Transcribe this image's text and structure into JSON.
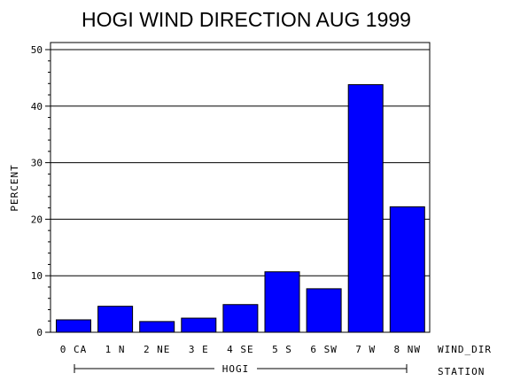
{
  "chart_data": {
    "type": "bar",
    "title": "HOGI WIND DIRECTION AUG 1999",
    "ylabel": "PERCENT",
    "xlabel": "WIND_DIR",
    "group_axis_label": "STATION",
    "group_label": "HOGI",
    "categories": [
      "0 CA",
      "1 N",
      "2 NE",
      "3 E",
      "4 SE",
      "5 S",
      "6 SW",
      "7 W",
      "8 NW"
    ],
    "values": [
      2.2,
      4.6,
      1.9,
      2.5,
      4.9,
      10.7,
      7.7,
      43.8,
      22.2
    ],
    "ylim": [
      0,
      50
    ],
    "yticks": [
      "0",
      "10",
      "20",
      "30",
      "40",
      "50"
    ],
    "grid": true,
    "bar_color": "#0000ff",
    "legend": false
  }
}
